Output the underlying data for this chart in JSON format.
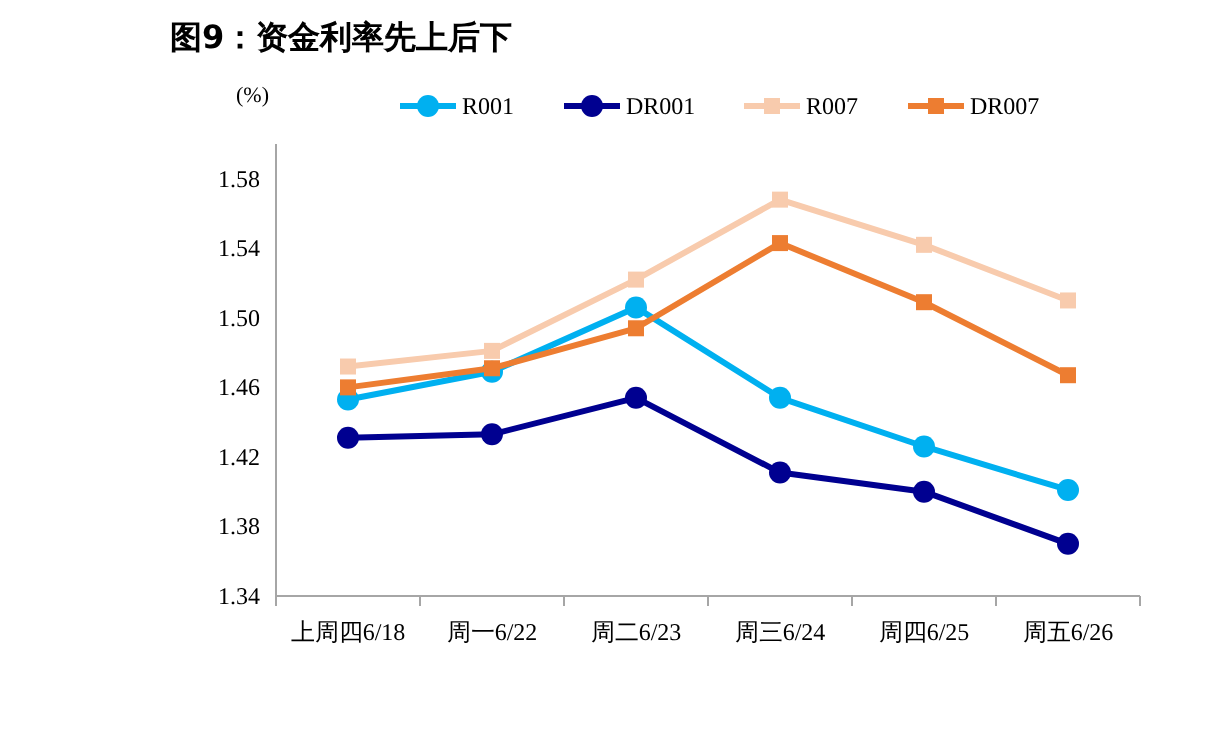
{
  "chart_data": {
    "type": "line",
    "title": "图9：资金利率先上后下",
    "ylabel": "(%)",
    "categories": [
      "上周四6/18",
      "周一6/22",
      "周二6/23",
      "周三6/24",
      "周四6/25",
      "周五6/26"
    ],
    "series": [
      {
        "name": "R001",
        "color": "#00b0f0",
        "marker": "circle",
        "values": [
          1.453,
          1.469,
          1.506,
          1.454,
          1.426,
          1.401
        ]
      },
      {
        "name": "DR001",
        "color": "#000090",
        "marker": "circle",
        "values": [
          1.431,
          1.433,
          1.454,
          1.411,
          1.4,
          1.37
        ]
      },
      {
        "name": "R007",
        "color": "#f8cbad",
        "marker": "square",
        "values": [
          1.472,
          1.481,
          1.522,
          1.568,
          1.542,
          1.51
        ]
      },
      {
        "name": "DR007",
        "color": "#ed7d31",
        "marker": "square",
        "values": [
          1.46,
          1.471,
          1.494,
          1.543,
          1.509,
          1.467
        ]
      }
    ],
    "ylim": [
      1.34,
      1.6
    ],
    "yticks": [
      1.34,
      1.38,
      1.42,
      1.46,
      {
        "value": 1.5,
        "label": "1.50"
      },
      1.54,
      1.58
    ],
    "grid": false,
    "legend": "top",
    "line_style": "solid"
  }
}
